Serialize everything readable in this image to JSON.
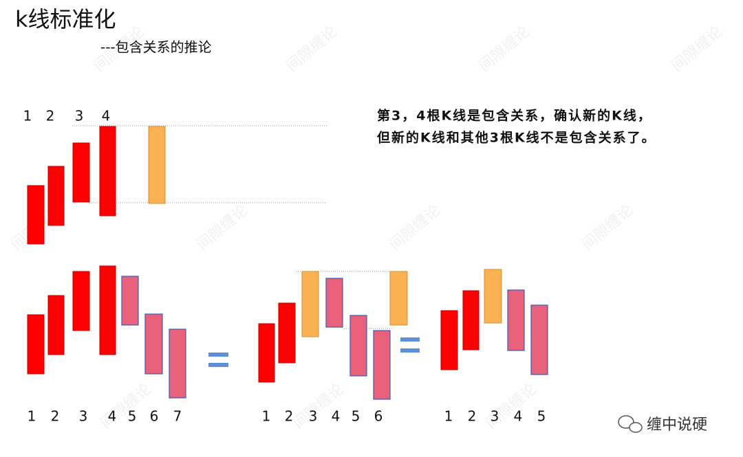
{
  "title": "k线标准化",
  "subtitle": "---包含关系的推论",
  "note": [
    "第3，4根K线是包含关系，确认新的K线，",
    "但新的K线和其他3根K线不是包含关系了。"
  ],
  "top_labels": [
    "1",
    "2",
    "3",
    "4"
  ],
  "groups": [
    {
      "labels": [
        "1",
        "2",
        "3",
        "4",
        "5",
        "6",
        "7"
      ]
    },
    {
      "labels": [
        "1",
        "2",
        "3",
        "4",
        "5",
        "6"
      ]
    },
    {
      "labels": [
        "1",
        "2",
        "3",
        "4",
        "5"
      ]
    }
  ],
  "watermark": "间隙缠论",
  "brand": "缠中说硬"
}
